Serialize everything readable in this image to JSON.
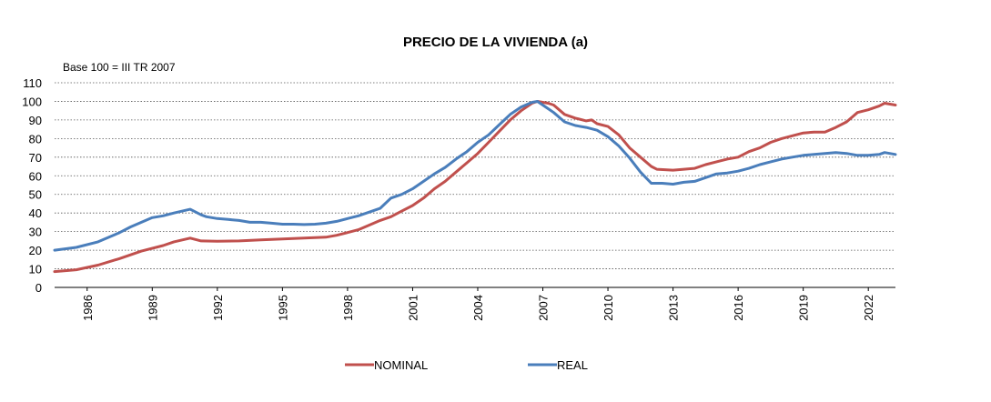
{
  "chart_data": {
    "type": "line",
    "title": "PRECIO DE LA VIVIENDA (a)",
    "note": "Base 100 = III TR 2007",
    "xlabel": "",
    "ylabel": "",
    "ylim": [
      0,
      110
    ],
    "yticks": [
      0,
      10,
      20,
      30,
      40,
      50,
      60,
      70,
      80,
      90,
      100,
      110
    ],
    "xlim": [
      1985.0,
      2023.75
    ],
    "xticks": [
      1986,
      1989,
      1992,
      1995,
      1998,
      2001,
      2004,
      2007,
      2010,
      2013,
      2016,
      2019,
      2022
    ],
    "grid": "horizontal-dotted",
    "legend_position": "bottom",
    "series": [
      {
        "name": "NOMINAL",
        "color": "#c0504d",
        "points": [
          [
            1985.0,
            8.5
          ],
          [
            1986.0,
            9.5
          ],
          [
            1987.0,
            12.0
          ],
          [
            1988.0,
            15.5
          ],
          [
            1989.0,
            19.5
          ],
          [
            1990.0,
            22.5
          ],
          [
            1990.5,
            24.5
          ],
          [
            1991.25,
            26.5
          ],
          [
            1991.75,
            25.0
          ],
          [
            1992.5,
            24.8
          ],
          [
            1993.5,
            25.0
          ],
          [
            1994.5,
            25.5
          ],
          [
            1995.5,
            26.0
          ],
          [
            1996.5,
            26.5
          ],
          [
            1997.5,
            27.0
          ],
          [
            1998.0,
            28.0
          ],
          [
            1998.5,
            29.5
          ],
          [
            1999.0,
            31.0
          ],
          [
            1999.5,
            33.5
          ],
          [
            2000.0,
            36.0
          ],
          [
            2000.5,
            38.0
          ],
          [
            2001.0,
            41.0
          ],
          [
            2001.5,
            44.0
          ],
          [
            2002.0,
            48.0
          ],
          [
            2002.5,
            53.0
          ],
          [
            2003.0,
            57.0
          ],
          [
            2003.5,
            62.0
          ],
          [
            2004.0,
            67.0
          ],
          [
            2004.5,
            72.0
          ],
          [
            2005.0,
            78.0
          ],
          [
            2005.5,
            84.0
          ],
          [
            2006.0,
            90.0
          ],
          [
            2006.5,
            95.0
          ],
          [
            2007.0,
            99.0
          ],
          [
            2007.25,
            100.0
          ],
          [
            2007.75,
            99.0
          ],
          [
            2008.0,
            98.0
          ],
          [
            2008.5,
            93.0
          ],
          [
            2009.0,
            91.0
          ],
          [
            2009.5,
            89.5
          ],
          [
            2009.75,
            90.0
          ],
          [
            2010.0,
            88.0
          ],
          [
            2010.5,
            86.5
          ],
          [
            2011.0,
            82.0
          ],
          [
            2011.5,
            75.0
          ],
          [
            2012.0,
            70.0
          ],
          [
            2012.5,
            65.0
          ],
          [
            2012.75,
            63.5
          ],
          [
            2013.5,
            63.0
          ],
          [
            2014.0,
            63.5
          ],
          [
            2014.5,
            64.0
          ],
          [
            2015.0,
            66.0
          ],
          [
            2015.5,
            67.5
          ],
          [
            2016.0,
            69.0
          ],
          [
            2016.5,
            70.0
          ],
          [
            2017.0,
            73.0
          ],
          [
            2017.5,
            75.0
          ],
          [
            2018.0,
            78.0
          ],
          [
            2018.5,
            80.0
          ],
          [
            2019.0,
            81.5
          ],
          [
            2019.5,
            83.0
          ],
          [
            2020.0,
            83.5
          ],
          [
            2020.5,
            83.5
          ],
          [
            2021.0,
            86.0
          ],
          [
            2021.5,
            89.0
          ],
          [
            2022.0,
            94.0
          ],
          [
            2022.5,
            95.5
          ],
          [
            2023.0,
            97.5
          ],
          [
            2023.25,
            99.0
          ],
          [
            2023.75,
            98.0
          ]
        ]
      },
      {
        "name": "REAL",
        "color": "#4a7ebb",
        "points": [
          [
            1985.0,
            20.0
          ],
          [
            1986.0,
            21.5
          ],
          [
            1987.0,
            24.5
          ],
          [
            1988.0,
            29.5
          ],
          [
            1988.5,
            32.5
          ],
          [
            1989.0,
            35.0
          ],
          [
            1989.5,
            37.5
          ],
          [
            1990.0,
            38.5
          ],
          [
            1990.5,
            40.0
          ],
          [
            1991.25,
            42.0
          ],
          [
            1991.75,
            39.0
          ],
          [
            1992.0,
            38.0
          ],
          [
            1992.5,
            37.0
          ],
          [
            1993.0,
            36.5
          ],
          [
            1993.5,
            36.0
          ],
          [
            1994.0,
            35.0
          ],
          [
            1994.5,
            35.0
          ],
          [
            1995.0,
            34.5
          ],
          [
            1995.5,
            34.0
          ],
          [
            1996.0,
            34.0
          ],
          [
            1996.5,
            33.8
          ],
          [
            1997.0,
            34.0
          ],
          [
            1997.5,
            34.5
          ],
          [
            1998.0,
            35.5
          ],
          [
            1998.5,
            37.0
          ],
          [
            1999.0,
            38.5
          ],
          [
            1999.5,
            40.5
          ],
          [
            2000.0,
            42.5
          ],
          [
            2000.5,
            48.0
          ],
          [
            2001.0,
            50.0
          ],
          [
            2001.5,
            53.0
          ],
          [
            2002.0,
            57.0
          ],
          [
            2002.5,
            61.0
          ],
          [
            2003.0,
            64.5
          ],
          [
            2003.5,
            69.0
          ],
          [
            2004.0,
            73.0
          ],
          [
            2004.5,
            78.0
          ],
          [
            2005.0,
            82.0
          ],
          [
            2005.5,
            87.5
          ],
          [
            2006.0,
            93.0
          ],
          [
            2006.5,
            97.0
          ],
          [
            2007.0,
            99.5
          ],
          [
            2007.25,
            100.0
          ],
          [
            2007.75,
            96.0
          ],
          [
            2008.0,
            94.0
          ],
          [
            2008.5,
            89.0
          ],
          [
            2009.0,
            87.0
          ],
          [
            2009.5,
            86.0
          ],
          [
            2010.0,
            84.5
          ],
          [
            2010.5,
            81.0
          ],
          [
            2011.0,
            76.0
          ],
          [
            2011.5,
            69.5
          ],
          [
            2012.0,
            62.0
          ],
          [
            2012.5,
            56.0
          ],
          [
            2013.0,
            56.0
          ],
          [
            2013.5,
            55.5
          ],
          [
            2014.0,
            56.5
          ],
          [
            2014.5,
            57.0
          ],
          [
            2015.0,
            59.0
          ],
          [
            2015.5,
            61.0
          ],
          [
            2016.0,
            61.5
          ],
          [
            2016.5,
            62.5
          ],
          [
            2017.0,
            64.0
          ],
          [
            2017.5,
            66.0
          ],
          [
            2018.0,
            67.5
          ],
          [
            2018.5,
            69.0
          ],
          [
            2019.0,
            70.0
          ],
          [
            2019.5,
            71.0
          ],
          [
            2020.0,
            71.5
          ],
          [
            2020.5,
            72.0
          ],
          [
            2021.0,
            72.5
          ],
          [
            2021.5,
            72.0
          ],
          [
            2022.0,
            71.0
          ],
          [
            2022.5,
            71.0
          ],
          [
            2023.0,
            71.5
          ],
          [
            2023.25,
            72.5
          ],
          [
            2023.75,
            71.5
          ]
        ]
      }
    ]
  }
}
